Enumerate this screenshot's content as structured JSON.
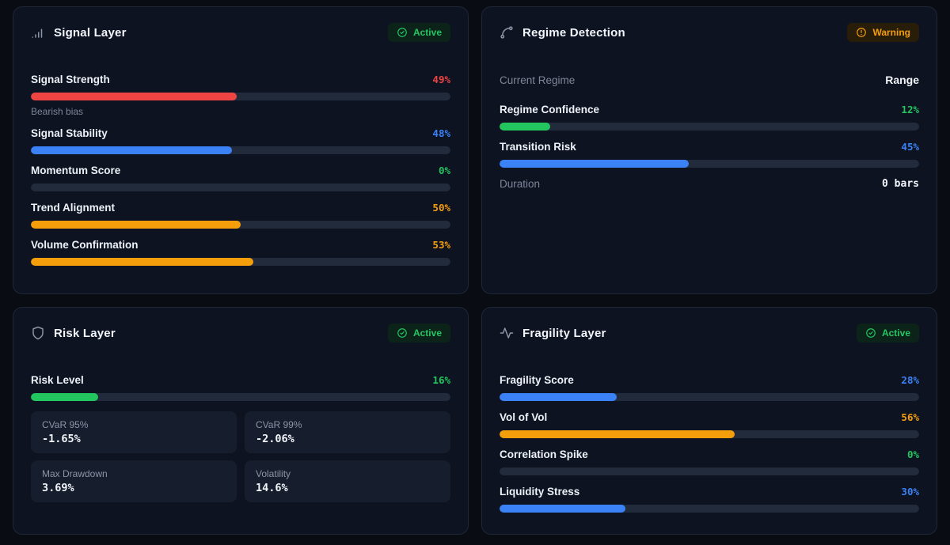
{
  "colors": {
    "red": "#ef4444",
    "blue": "#3b82f6",
    "green": "#22c55e",
    "orange": "#f59e0b"
  },
  "panels": [
    {
      "id": "signal-layer",
      "title": "Signal Layer",
      "icon": "signal-bars-icon",
      "badge": {
        "label": "Active",
        "type": "active",
        "icon": "check-circle-icon"
      },
      "rows": [
        {
          "kind": "metric",
          "label": "Signal Strength",
          "value": "49%",
          "pct": 49,
          "color": "red",
          "caption": "Bearish bias"
        },
        {
          "kind": "metric",
          "label": "Signal Stability",
          "value": "48%",
          "pct": 48,
          "color": "blue"
        },
        {
          "kind": "metric",
          "label": "Momentum Score",
          "value": "0%",
          "pct": 0,
          "color": "green"
        },
        {
          "kind": "metric",
          "label": "Trend Alignment",
          "value": "50%",
          "pct": 50,
          "color": "orange"
        },
        {
          "kind": "metric",
          "label": "Volume Confirmation",
          "value": "53%",
          "pct": 53,
          "color": "orange"
        }
      ]
    },
    {
      "id": "regime-detection",
      "title": "Regime Detection",
      "icon": "spline-branch-icon",
      "badge": {
        "label": "Warning",
        "type": "warning",
        "icon": "alert-circle-icon"
      },
      "rows": [
        {
          "kind": "kv",
          "label": "Current Regime",
          "value": "Range",
          "mono": false
        },
        {
          "kind": "metric",
          "label": "Regime Confidence",
          "value": "12%",
          "pct": 12,
          "color": "green"
        },
        {
          "kind": "metric",
          "label": "Transition Risk",
          "value": "45%",
          "pct": 45,
          "color": "blue"
        },
        {
          "kind": "kv",
          "label": "Duration",
          "value": "0 bars",
          "mono": true
        }
      ]
    },
    {
      "id": "risk-layer",
      "title": "Risk Layer",
      "icon": "shield-icon",
      "badge": {
        "label": "Active",
        "type": "active",
        "icon": "check-circle-icon"
      },
      "rows": [
        {
          "kind": "metric",
          "label": "Risk Level",
          "value": "16%",
          "pct": 16,
          "color": "green"
        },
        {
          "kind": "stats",
          "items": [
            {
              "label": "CVaR 95%",
              "value": "-1.65%"
            },
            {
              "label": "CVaR 99%",
              "value": "-2.06%"
            },
            {
              "label": "Max Drawdown",
              "value": "3.69%"
            },
            {
              "label": "Volatility",
              "value": "14.6%"
            }
          ]
        }
      ]
    },
    {
      "id": "fragility-layer",
      "title": "Fragility Layer",
      "icon": "activity-icon",
      "badge": {
        "label": "Active",
        "type": "active",
        "icon": "check-circle-icon"
      },
      "rows": [
        {
          "kind": "metric",
          "label": "Fragility Score",
          "value": "28%",
          "pct": 28,
          "color": "blue"
        },
        {
          "kind": "metric",
          "label": "Vol of Vol",
          "value": "56%",
          "pct": 56,
          "color": "orange"
        },
        {
          "kind": "metric",
          "label": "Correlation Spike",
          "value": "0%",
          "pct": 0,
          "color": "green"
        },
        {
          "kind": "metric",
          "label": "Liquidity Stress",
          "value": "30%",
          "pct": 30,
          "color": "blue"
        }
      ]
    }
  ]
}
